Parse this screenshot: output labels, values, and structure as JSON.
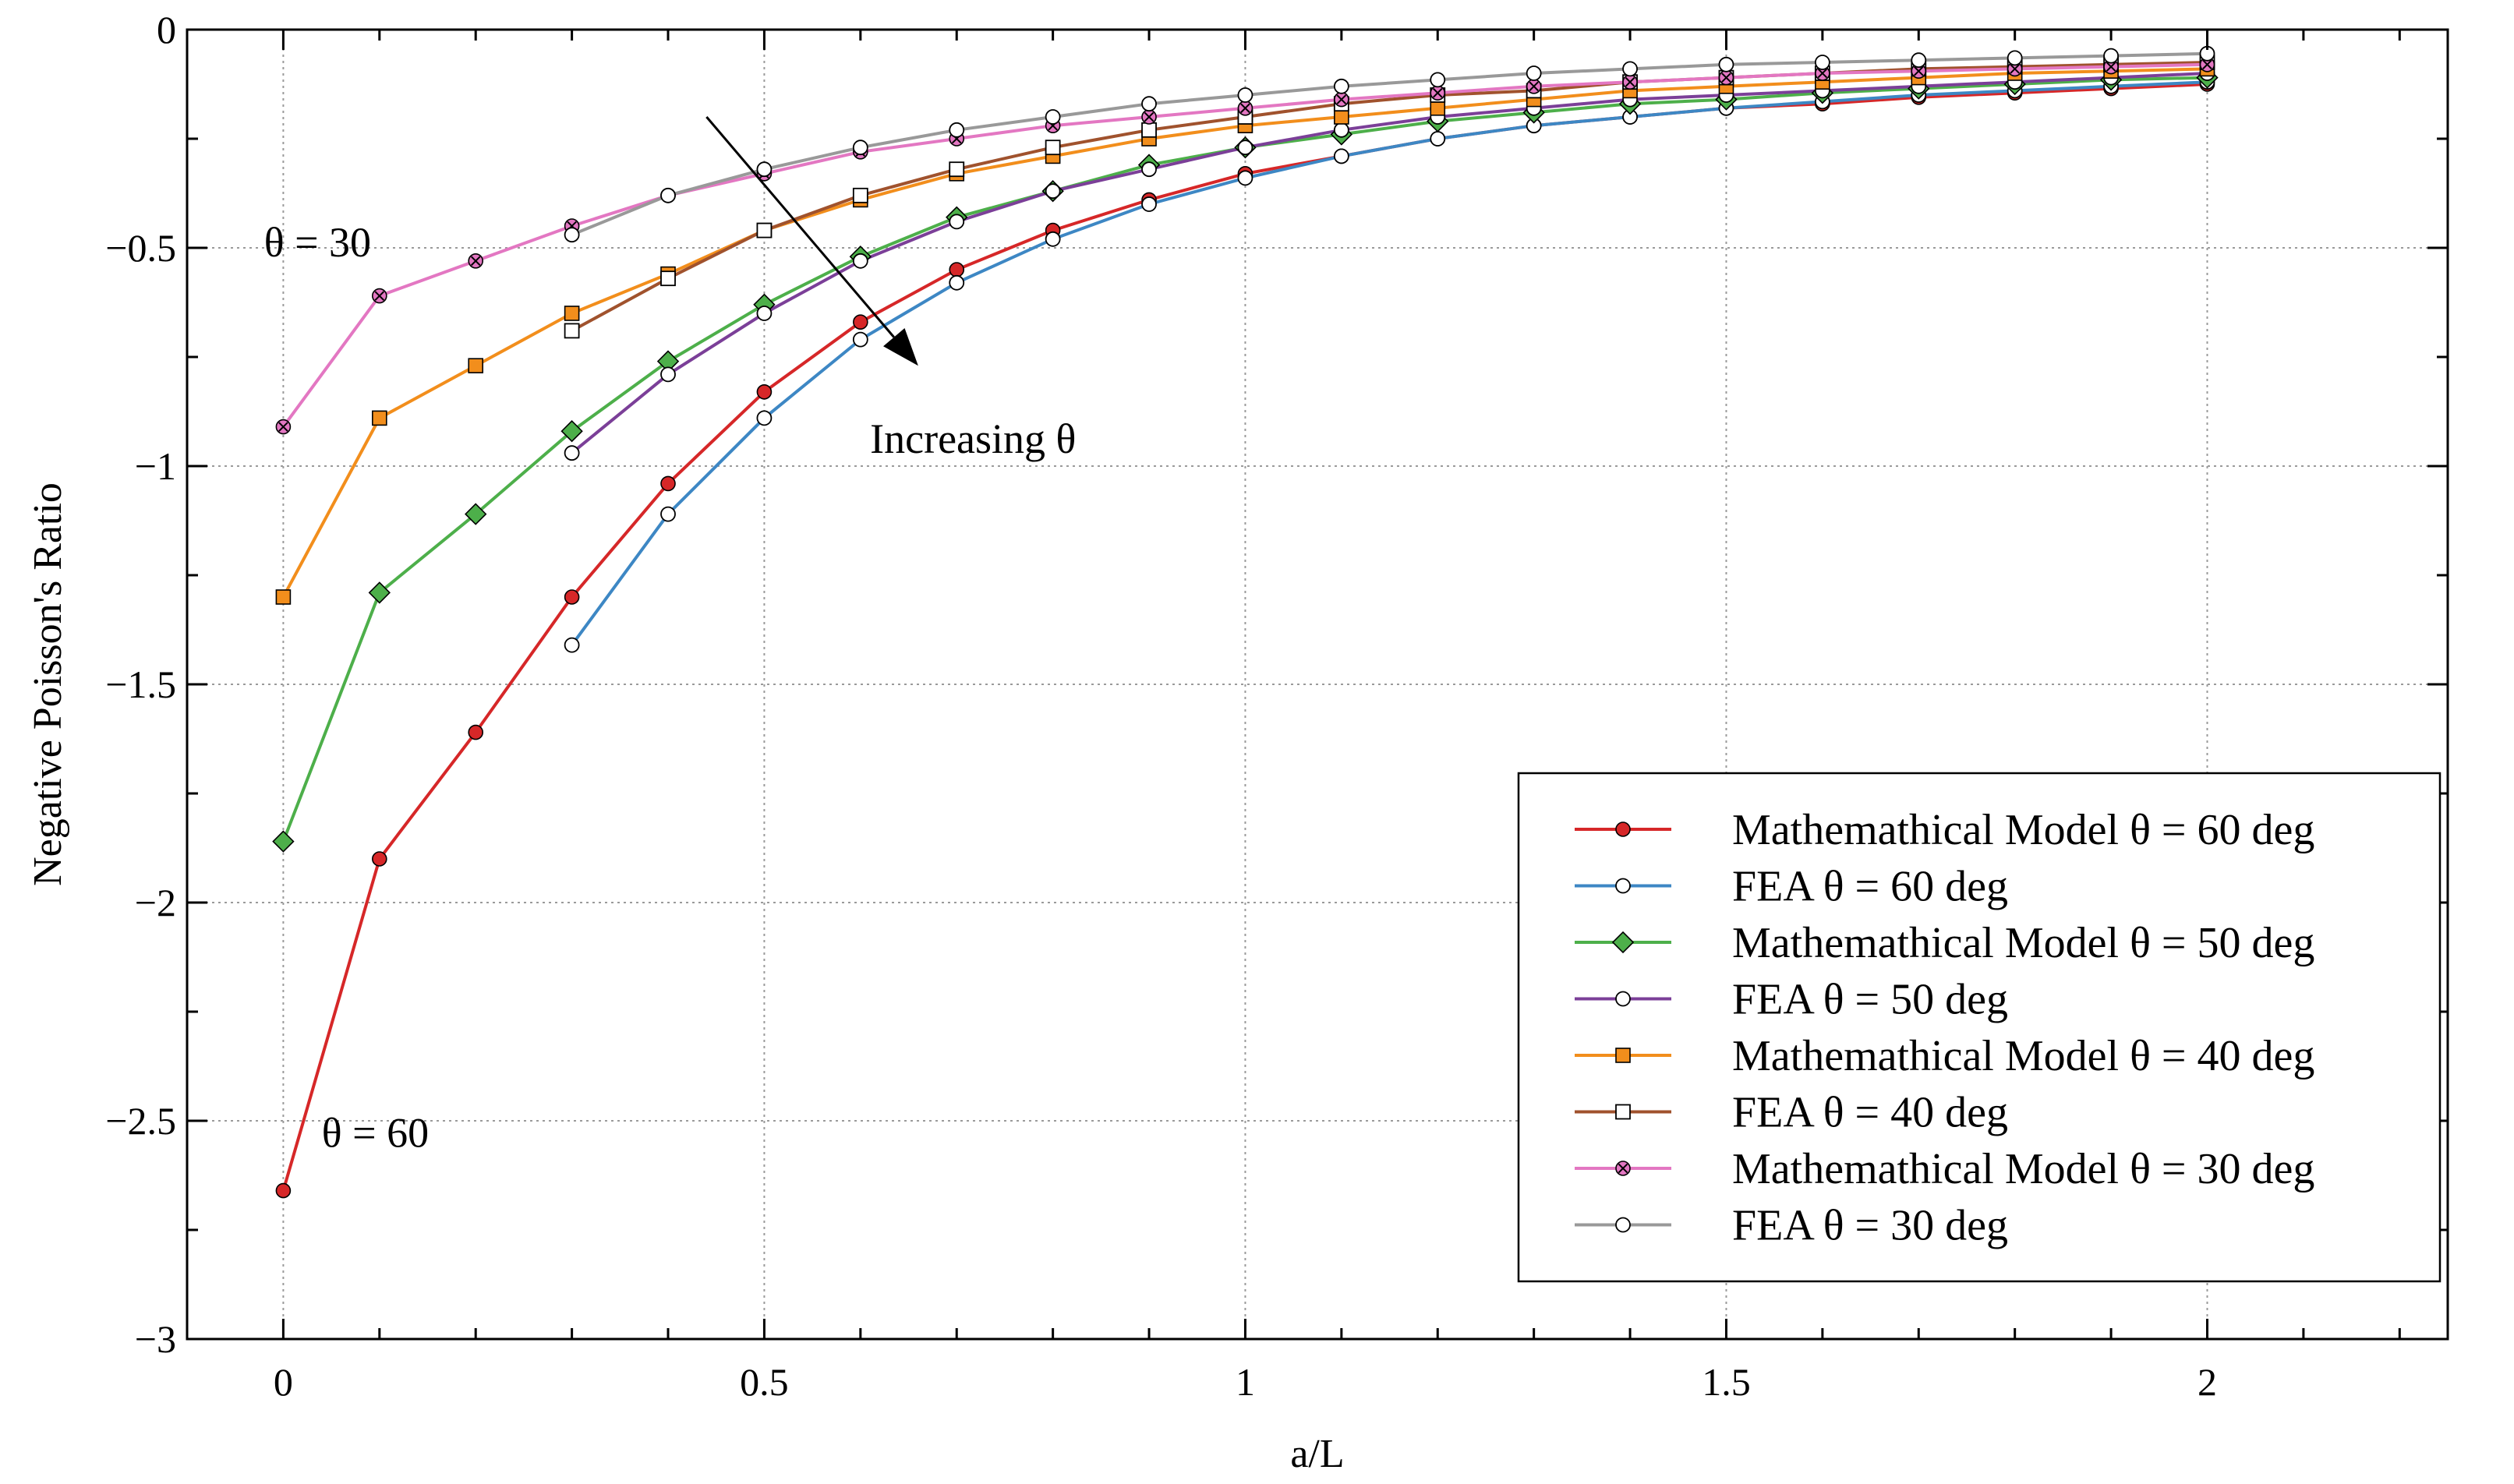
{
  "chart_data": {
    "type": "line",
    "title": "",
    "xlabel": "a/L",
    "ylabel": "Negative Poisson's Ratio",
    "xlim": [
      -0.1,
      2.25
    ],
    "ylim": [
      -3,
      0
    ],
    "grid": true,
    "legend_position": "bottom-right",
    "x_ticks": [
      "0",
      "0.5",
      "1",
      "1.5",
      "2"
    ],
    "y_ticks": [
      "0",
      "−0.5",
      "−1",
      "−1.5",
      "−2",
      "−2.5",
      "−3"
    ],
    "x_tick_values": [
      0,
      0.5,
      1,
      1.5,
      2
    ],
    "y_tick_values": [
      0,
      -0.5,
      -1,
      -1.5,
      -2,
      -2.5,
      -3
    ],
    "x": [
      0,
      0.1,
      0.2,
      0.3,
      0.4,
      0.5,
      0.6,
      0.7,
      0.8,
      0.9,
      1.0,
      1.1,
      1.2,
      1.3,
      1.4,
      1.5,
      1.6,
      1.7,
      1.8,
      1.9,
      2.0
    ],
    "series": [
      {
        "name": "Mathemathical Model θ = 60 deg",
        "color": "#d62728",
        "marker": "filled-circle",
        "values": [
          -2.66,
          -1.9,
          -1.61,
          -1.3,
          -1.04,
          -0.83,
          -0.67,
          -0.55,
          -0.46,
          -0.39,
          -0.33,
          -0.29,
          -0.25,
          -0.22,
          -0.2,
          -0.18,
          -0.17,
          -0.155,
          -0.145,
          -0.135,
          -0.125
        ]
      },
      {
        "name": "FEA θ = 60 deg",
        "color": "#3d87c4",
        "marker": "open-circle",
        "values": [
          null,
          null,
          null,
          -1.41,
          -1.11,
          -0.89,
          -0.71,
          -0.58,
          -0.48,
          -0.4,
          -0.34,
          -0.29,
          -0.25,
          -0.22,
          -0.2,
          -0.18,
          -0.165,
          -0.15,
          -0.14,
          -0.13,
          -0.12
        ]
      },
      {
        "name": "Mathemathical Model θ = 50 deg",
        "color": "#4daf4a",
        "marker": "filled-diamond",
        "values": [
          -1.86,
          -1.29,
          -1.11,
          -0.92,
          -0.76,
          -0.63,
          -0.52,
          -0.43,
          -0.37,
          -0.31,
          -0.27,
          -0.24,
          -0.21,
          -0.19,
          -0.17,
          -0.16,
          -0.145,
          -0.135,
          -0.125,
          -0.115,
          -0.11
        ]
      },
      {
        "name": "FEA θ = 50 deg",
        "color": "#7b3f98",
        "marker": "open-circle",
        "values": [
          null,
          null,
          null,
          -0.97,
          -0.79,
          -0.65,
          -0.53,
          -0.44,
          -0.37,
          -0.32,
          -0.27,
          -0.23,
          -0.2,
          -0.18,
          -0.16,
          -0.15,
          -0.14,
          -0.13,
          -0.12,
          -0.11,
          -0.1
        ]
      },
      {
        "name": "Mathemathical Model θ = 40 deg",
        "color": "#f28e1c",
        "marker": "filled-square",
        "values": [
          -1.3,
          -0.89,
          -0.77,
          -0.65,
          -0.56,
          -0.46,
          -0.39,
          -0.33,
          -0.29,
          -0.25,
          -0.22,
          -0.2,
          -0.18,
          -0.16,
          -0.14,
          -0.13,
          -0.12,
          -0.11,
          -0.1,
          -0.095,
          -0.09
        ]
      },
      {
        "name": "FEA θ = 40 deg",
        "color": "#a0522d",
        "marker": "open-square",
        "values": [
          null,
          null,
          null,
          -0.69,
          -0.57,
          -0.46,
          -0.38,
          -0.32,
          -0.27,
          -0.23,
          -0.2,
          -0.17,
          -0.15,
          -0.14,
          -0.12,
          -0.11,
          -0.1,
          -0.09,
          -0.085,
          -0.08,
          -0.075
        ]
      },
      {
        "name": "Mathemathical Model θ = 30 deg",
        "color": "#e377c2",
        "marker": "filled-x",
        "values": [
          -0.91,
          -0.61,
          -0.53,
          -0.45,
          -0.38,
          -0.33,
          -0.28,
          -0.25,
          -0.22,
          -0.2,
          -0.18,
          -0.16,
          -0.145,
          -0.13,
          -0.12,
          -0.11,
          -0.1,
          -0.095,
          -0.09,
          -0.085,
          -0.08
        ]
      },
      {
        "name": "FEA θ = 30 deg",
        "color": "#999999",
        "marker": "open-circle",
        "values": [
          null,
          null,
          null,
          -0.47,
          -0.38,
          -0.32,
          -0.27,
          -0.23,
          -0.2,
          -0.17,
          -0.15,
          -0.13,
          -0.115,
          -0.1,
          -0.09,
          -0.08,
          -0.075,
          -0.07,
          -0.065,
          -0.06,
          -0.055
        ]
      }
    ],
    "annotations": [
      {
        "text": "θ = 30",
        "at": [
          -0.02,
          -0.52
        ]
      },
      {
        "text": "θ = 60",
        "at": [
          0.04,
          -2.56
        ]
      },
      {
        "text": "Increasing θ",
        "at": [
          0.61,
          -0.97
        ]
      }
    ],
    "arrow": {
      "from": [
        0.44,
        -0.2
      ],
      "to": [
        0.66,
        -0.77
      ]
    }
  }
}
